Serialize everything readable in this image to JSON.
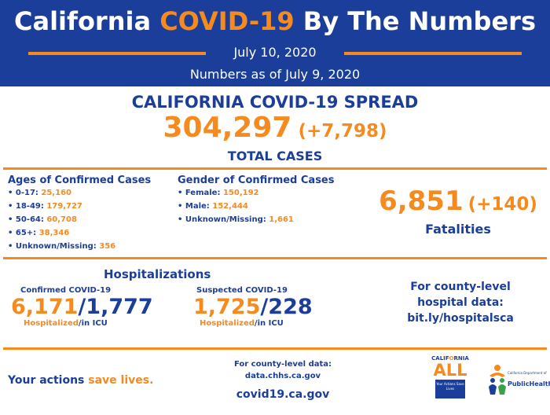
{
  "header": {
    "title_pre": "California ",
    "title_highlight": "COVID-19",
    "title_post": " By The Numbers",
    "date": "July 10, 2020",
    "as_of": "Numbers as of July 9, 2020"
  },
  "spread": {
    "title": "CALIFORNIA COVID-19 SPREAD",
    "total_cases": "304,297",
    "delta": "(+7,798)",
    "label": "TOTAL CASES"
  },
  "ages": {
    "title": "Ages of Confirmed Cases",
    "items": [
      {
        "label": "• 0-17: ",
        "value": "25,160"
      },
      {
        "label": "• 18-49: ",
        "value": "179,727"
      },
      {
        "label": "• 50-64: ",
        "value": "60,708"
      },
      {
        "label": "• 65+: ",
        "value": "38,346"
      },
      {
        "label": "• Unknown/Missing: ",
        "value": "356"
      }
    ]
  },
  "gender": {
    "title": "Gender of Confirmed Cases",
    "items": [
      {
        "label": "• Female: ",
        "value": "150,192"
      },
      {
        "label": "• Male: ",
        "value": "152,444"
      },
      {
        "label": "• Unknown/Missing: ",
        "value": "1,661"
      }
    ]
  },
  "fatalities": {
    "value": "6,851",
    "delta": "(+140)",
    "label": "Fatalities"
  },
  "hospitalizations": {
    "title": "Hospitalizations",
    "confirmed": {
      "subtitle": "Confirmed COVID-19",
      "hospitalized": "6,171",
      "sep": "/",
      "icu": "1,777",
      "foot_a": "Hospitalized",
      "foot_b": "/in ICU"
    },
    "suspected": {
      "subtitle": "Suspected COVID-19",
      "hospitalized": "1,725",
      "sep": "/",
      "icu": "228",
      "foot_a": "Hospitalized",
      "foot_b": "/in ICU"
    },
    "county_line1": "For county-level",
    "county_line2": "hospital data:",
    "county_link": "bit.ly/hospitalsca"
  },
  "footer": {
    "actions_pre": "Your actions ",
    "actions_highlight": "save lives.",
    "county_data_line1": "For county-level data:",
    "county_data_line2": "data.chhs.ca.gov",
    "site": "covid19.ca.gov"
  },
  "logos": {
    "ca_all_top_a": "CALIF",
    "ca_all_top_b": "O",
    "ca_all_top_c": "RNIA",
    "ca_all_word": "ALL",
    "ca_all_box": "Your Actions Save Lives",
    "cdph_text": "California Department of",
    "cdph_name": "PublicHealth"
  },
  "colors": {
    "navy": "#1b3e9a",
    "orange": "#f58a1f"
  }
}
